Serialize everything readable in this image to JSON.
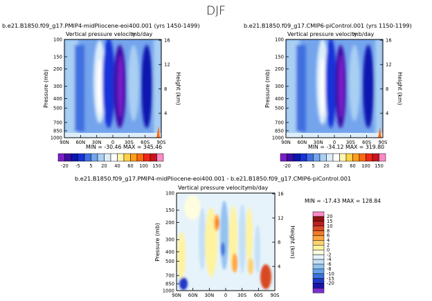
{
  "page_title": "DJF",
  "colors": {
    "contour_palette": [
      "#7a1fc8",
      "#3d0fa8",
      "#0b15b0",
      "#1632d8",
      "#3f6fe0",
      "#74a4ec",
      "#a9cff3",
      "#ddeefa",
      "#ffffff",
      "#fff7b0",
      "#ffd24a",
      "#ff9e1a",
      "#ff6a10",
      "#f02818",
      "#c8141a",
      "#ff8ac8"
    ],
    "diff_palette": [
      "#7a2fd0",
      "#1a14a8",
      "#2038c8",
      "#3b73dc",
      "#66a0e8",
      "#94c2f0",
      "#c4e0f6",
      "#e6f3fb",
      "#fffde0",
      "#fff3a0",
      "#ffd070",
      "#ffa640",
      "#f07a2a",
      "#d84a22",
      "#b82020",
      "#8e1010",
      "#ff8ac8"
    ]
  },
  "chart_data": [
    {
      "type": "heatmap",
      "panel": "top-left",
      "title": "b.e21.B1850.f09_g17.PMIP4-midPliocene-eoi400.001 (yrs 1450-1499)",
      "subtitle": "Vertical pressure velocity",
      "units": "mb/day",
      "xlabel": "",
      "ylabel": "Pressure (mb)",
      "y2label": "Height (km)",
      "x_ticks": [
        "90N",
        "60N",
        "30N",
        "0",
        "30S",
        "60S",
        "90S"
      ],
      "y_ticks": [
        "100",
        "150",
        "200",
        "300",
        "400",
        "500",
        "700",
        "850",
        "1000"
      ],
      "y2_ticks": [
        "16",
        "12",
        "8",
        "4"
      ],
      "ylim": [
        1000,
        100
      ],
      "stats": "MIN = -30.46   MAX = 345.46",
      "colorbar_labels": [
        "-20",
        "-5",
        "5",
        "20",
        "40",
        "60",
        "100",
        "150"
      ]
    },
    {
      "type": "heatmap",
      "panel": "top-right",
      "title": "b.e21.B1850.f09_g17.CMIP6-piControl.001 (yrs 1150-1199)",
      "subtitle": "Vertical pressure velocity",
      "units": "mb/day",
      "xlabel": "",
      "ylabel": "Pressure (mb)",
      "y2label": "Height (km)",
      "x_ticks": [
        "90N",
        "60N",
        "30N",
        "0",
        "30S",
        "60S",
        "90S"
      ],
      "y_ticks": [
        "100",
        "150",
        "200",
        "300",
        "400",
        "500",
        "700",
        "850",
        "1000"
      ],
      "y2_ticks": [
        "16",
        "12",
        "8",
        "4"
      ],
      "ylim": [
        1000,
        100
      ],
      "stats": "MIN = -34.12   MAX = 319.80",
      "colorbar_labels": [
        "-20",
        "-5",
        "5",
        "20",
        "40",
        "60",
        "100",
        "150"
      ]
    },
    {
      "type": "heatmap",
      "panel": "bottom",
      "title": "b.e21.B1850.f09_g17.PMIP4-midPliocene-eoi400.001 - b.e21.B1850.f09_g17.CMIP6-piControl.001",
      "subtitle": "Vertical pressure velocity",
      "units": "mb/day",
      "xlabel": "",
      "ylabel": "Pressure (mb)",
      "y2label": "Height (km)",
      "x_ticks": [
        "90N",
        "60N",
        "30N",
        "0",
        "30S",
        "60S",
        "90S"
      ],
      "y_ticks": [
        "100",
        "150",
        "200",
        "300",
        "400",
        "500",
        "700",
        "850",
        "1000"
      ],
      "y2_ticks": [
        "16",
        "12",
        "8",
        "4"
      ],
      "ylim": [
        1000,
        100
      ],
      "stats": "MIN = -17.43   MAX = 128.84",
      "colorbar_labels": [
        "20",
        "15",
        "10",
        "8",
        "6",
        "4",
        "2",
        "0",
        "-2",
        "-4",
        "-6",
        "-8",
        "-10",
        "-15",
        "-20"
      ]
    }
  ]
}
